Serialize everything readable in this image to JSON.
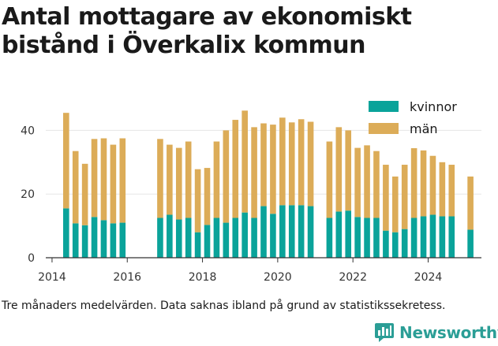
{
  "title": "Antal mottagare av ekonomiskt bistånd i Överkalix kommun",
  "caption": "Tre månaders medelvärden. Data saknas ibland på grund av statistikssekretess.",
  "logo_text": "Newsworthy",
  "logo_icon": "bar-chart-speech-bubble-icon",
  "colors": {
    "kvinnor": "#0aa39a",
    "man": "#dcac58",
    "axis": "#333333",
    "grid": "#e6e6e6",
    "logo": "#2b9e96"
  },
  "chart_data": {
    "type": "bar",
    "stacked": true,
    "title": "Antal mottagare av ekonomiskt bistånd i Överkalix kommun",
    "xlabel": "",
    "ylabel": "",
    "ylim": [
      0,
      50
    ],
    "yticks": [
      0,
      20,
      40
    ],
    "xticks": [
      "2014",
      "2016",
      "2018",
      "2020",
      "2022",
      "2024"
    ],
    "xlim": [
      "2013-11",
      "2025-06"
    ],
    "grid": true,
    "legend": "top-right",
    "x": [
      "2014-05",
      "2014-08",
      "2014-11",
      "2015-02",
      "2015-05",
      "2015-08",
      "2015-11",
      "2016-11",
      "2017-02",
      "2017-05",
      "2017-08",
      "2017-11",
      "2018-02",
      "2018-05",
      "2018-08",
      "2018-11",
      "2019-02",
      "2019-05",
      "2019-08",
      "2019-11",
      "2020-02",
      "2020-05",
      "2020-08",
      "2020-11",
      "2021-05",
      "2021-08",
      "2021-11",
      "2022-02",
      "2022-05",
      "2022-08",
      "2022-11",
      "2023-02",
      "2023-05",
      "2023-08",
      "2023-11",
      "2024-02",
      "2024-05",
      "2024-08",
      "2025-02"
    ],
    "series": [
      {
        "name": "kvinnor",
        "values": [
          15.5,
          10.8,
          10.2,
          12.8,
          11.8,
          10.8,
          11.0,
          12.5,
          13.5,
          12.0,
          12.5,
          8.0,
          10.3,
          12.5,
          11.0,
          12.5,
          14.2,
          12.5,
          16.2,
          13.8,
          16.5,
          16.5,
          16.5,
          16.2,
          12.5,
          14.5,
          14.8,
          12.8,
          12.5,
          12.5,
          8.5,
          8.0,
          9.0,
          12.5,
          13.0,
          13.5,
          13.0,
          13.0,
          8.8
        ]
      },
      {
        "name": "män",
        "values": [
          30.0,
          22.7,
          19.3,
          24.5,
          25.7,
          24.7,
          26.5,
          24.8,
          22.0,
          22.5,
          24.0,
          19.8,
          17.9,
          24.0,
          29.0,
          30.8,
          32.0,
          28.5,
          26.0,
          28.0,
          27.5,
          26.0,
          27.0,
          26.5,
          24.0,
          26.5,
          25.2,
          21.7,
          22.8,
          21.0,
          20.7,
          17.5,
          20.2,
          21.9,
          20.7,
          18.5,
          17.0,
          16.2,
          16.7
        ]
      }
    ]
  }
}
